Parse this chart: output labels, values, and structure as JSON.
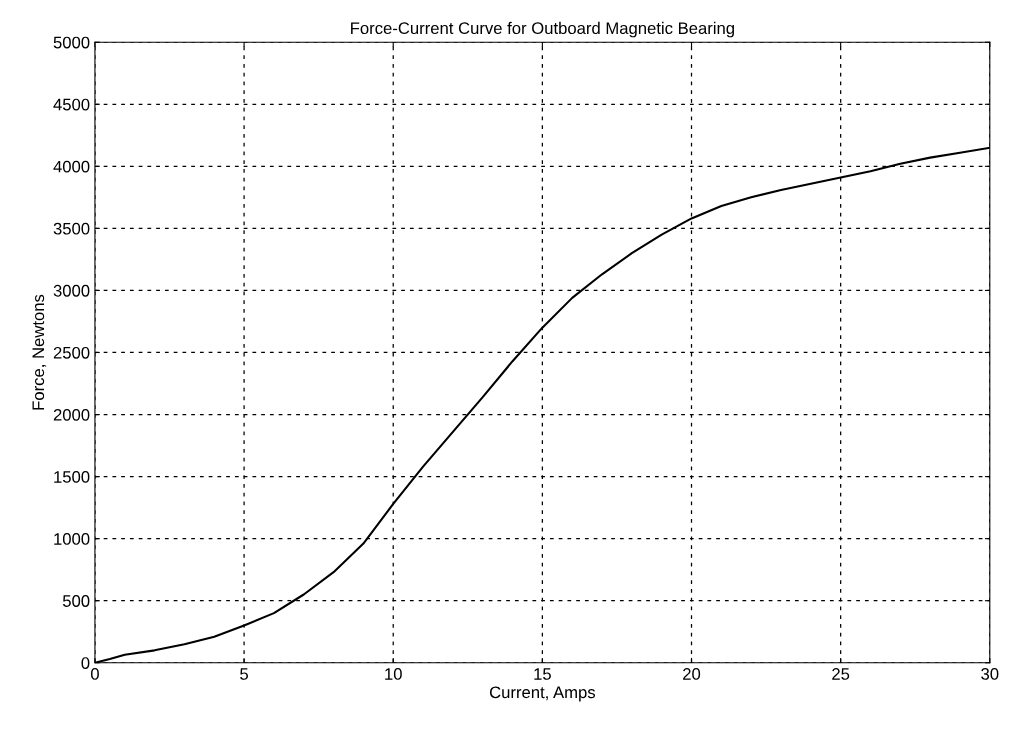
{
  "chart_data": {
    "type": "line",
    "title": "Force-Current Curve for Outboard Magnetic Bearing",
    "xlabel": "Current, Amps",
    "ylabel": "Force, Newtons",
    "x": [
      0,
      0.5,
      1,
      2,
      3,
      4,
      5,
      6,
      7,
      8,
      9,
      10,
      11,
      12,
      13,
      14,
      15,
      16,
      17,
      18,
      19,
      20,
      21,
      22,
      23,
      24,
      25,
      26,
      27,
      28,
      29,
      30
    ],
    "series": [
      {
        "color": "#000000",
        "values": [
          0,
          30,
          65,
          100,
          150,
          210,
          300,
          400,
          550,
          730,
          960,
          1280,
          1580,
          1860,
          2140,
          2430,
          2700,
          2940,
          3130,
          3300,
          3450,
          3580,
          3680,
          3750,
          3810,
          3860,
          3910,
          3960,
          4020,
          4070,
          4110,
          4150
        ]
      }
    ],
    "xlim": [
      0,
      30
    ],
    "xticks": [
      0,
      5,
      10,
      15,
      20,
      25,
      30
    ],
    "ylim": [
      0,
      5000
    ],
    "yticks": [
      0,
      500,
      1000,
      1500,
      2000,
      2500,
      3000,
      3500,
      4000,
      4500,
      5000
    ],
    "grid": true,
    "line_style": "solid",
    "marker": "none"
  }
}
